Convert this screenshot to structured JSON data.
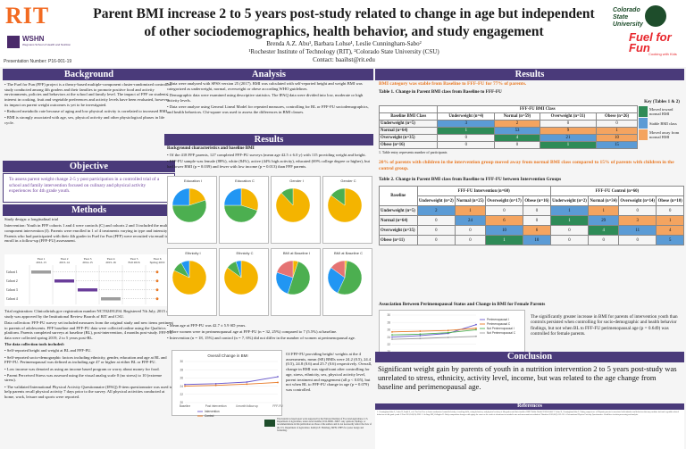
{
  "header": {
    "logo_text": "RIT",
    "wshn_name": "WSHN",
    "wshn_sub": "Wegmans School of Health and Nutrition",
    "presentation_number": "Presentation Number: P16-001-19",
    "title": "Parent BMI increase 2 to 5 years post-study related to change in age but independent of other sociodemographics, health behavior, and study engagement",
    "authors": "Brenda A.Z. Abu¹, Barbara Lohse¹, Leslie Cunningham-Sabo²",
    "affiliations": "¹Rochester Institute of Technology (RIT), ²Colorado State University (CSU)",
    "contact": "Contact: baaihst@rit.edu",
    "csu_logo": "Colorado State University",
    "fuel_logo": "Fuel for Fun",
    "fuel_sub": "Cooking with Kids"
  },
  "background": {
    "heading": "Background",
    "items": [
      "The Fuel for Fun (FFF) project is a theory-based multiple-component cluster-randomized controlled study conducted among 4th graders and their families to promote positive food and activity environments, policies and behaviors at the school and family level. The impact of FFF on students' interest in cooking, fruit and vegetable preferences and activity levels have been evaluated, however, its impact on parent weight outcomes is yet to be investigated.",
      "Reduced metabolic rate because of aging and low physical activity is correlated to increased BMI.",
      "BMI is strongly associated with age, sex, physical activity and other physiological phases in life cycle."
    ]
  },
  "objective": {
    "heading": "Objective",
    "text": "To assess parent weight change 2-5 y post participation in a controlled trial of a school and family intervention focused on culinary and physical activity experiences for 4th grade youth."
  },
  "methods": {
    "heading": "Methods",
    "design": "Study design: a longitudinal trial",
    "intervention": "Intervention: Youth in FFF cohorts 1 and 4 were controls (C) and cohorts 2 and 3 included the multi-component intervention (I). Parents were enrolled in 1 of 4 treatments varying in type and intensity. Parents who had participated with their 4th grader in Fuel for Fun (FFF) were recruited via email to enroll in a follow-up (FFF-FU) assessment.",
    "timeline_labels": [
      "Year 1 2012-13",
      "Year 2 2013-14",
      "Year 3 2014-15",
      "Year 4 2015-16",
      "Year 5 Fall 2016",
      "Year 6 Spring 2019"
    ],
    "cohort_labels": [
      "Cohort 1",
      "Cohort 2",
      "Cohort 3",
      "Cohort 4"
    ],
    "trial_reg": "Trial registration: Clinicaltrials.gov registration number NCT02491294. Registered 7th July, 2015 and study was approved by the Institutional Review Boards of RIT and CSU.",
    "data_collection": "Data collection: FFF-FU survey set included measures from the original study and new items pertinent to parents of adolescents. FFF baseline and FFF-FU data were collected online using the Qualtrics platform. Parents completed surveys at baseline (BL), post-intervention, 4 months post-study. FFF-FU data were collected spring 2019, 2 to 5 years post-BL.",
    "tools_heading": "The data collection tools included:",
    "tools": [
      "Self-reported height and weight at BL and FFF-FU.",
      "Self-reported socio-demographic factors including ethnicity, gender, education and age at BL and FFF-FU. Perimenopausal was defined as including age 47 or higher at either BL or FFF-FU.",
      "Low income was denoted as using an income based program or worry about money for food.",
      "Parent Perceived Stress was assessed using the visual analog scale 0 (no stress) to 10 (extreme stress).",
      "The validated International Physical Activity Questionnaire (IPAQ) 8-item questionnaire was used to help parents recall physical activity 7 days prior to the survey. All physical activities conducted at home, work, leisure and sports were reported."
    ]
  },
  "analysis": {
    "heading": "Analysis",
    "items": [
      "Data were analyzed with SPSS version 25 (2017). BMI was calculated with self-reported height and weight BMI was categorized as underweight, normal, overweight or obese according WHO guidelines.",
      "Demographic data were examined using descriptive statistics. The IPAQ data were divided into low, moderate or high activity levels.",
      "Data were analyze using General Lineal Model for repeated measures, controlling for BL or FFF-FU sociodemographics, and health behaviors. Chi-square was used to assess the differences in BMI classes."
    ]
  },
  "results_mid": {
    "heading": "Results",
    "subheading": "Background characteristics and baseline BMI",
    "items": [
      "Of the 418 FFF parents, 127 completed FFF-FU surveys (mean age 42.5 ± 6.0 y) with 115 providing weight and height.",
      "FFF-FU sample was female (88%), white (84%), active (44% high activity), educated (69% college degree or higher), but had lower BMI (p = 0.039) and fewer with low income (p = 0.013) than FFF parents."
    ],
    "pie_titles": [
      "Education I",
      "Education C",
      "Gender I",
      "Gender C",
      "Ethnicity I",
      "Ethnicity C",
      "BMI at Baseline I",
      "BMI at Baseline C"
    ],
    "bullets2": [
      "Mean age at FFF-FU was 42.7 ± 5.9 SD years.",
      "More women were in perimenopausal age at FFF-FU (n = 32, 25%) compared to 7 (5.5%) at baseline.",
      "Intervention (n = 18, 15%) and control (n = 7, 6%) did not differ in the number of women at perimenopausal age."
    ],
    "line_title": "Overall Change in BMI",
    "line_caption": "Of FFF-FU providing height/ weights at the 4 assessments, mean (SE) BMIs were 24.2 (0.5), 24.4 (0.5), 24.8 (0.6) and 25.7 (0.6) respectively. Overall, change in BMI was significant after controlling for age, stress, ethnicity, sex, physical activity level, parent treatment and engagement (all p < 0.05), but not when BL to FFF-FU change in age (p = 0.079) was controlled.",
    "ack": "The material is based upon work supported by the National Institute of Food and Agriculture, U.S. Department of Agriculture, under award number 2012-68001-19607. Any opinions, findings, or recommendations in this publication are those of the authors and do not necessarily reflect the view of the U.S. Department of Agriculture. Kathryn E. Hamburg, MPH, CHES for poster design and formatting."
  },
  "results_right": {
    "heading": "Results",
    "finding1": "BMI category was stable from Baseline to FFF-FU for 77% of parents.",
    "table1_title": "Table 1. Change in Parent BMI class from Baseline to FFF-FU",
    "table1_group": "FFF-FU BMI Class",
    "table1_cols": [
      "Baseline BMI Class",
      "Underweight (n=4)",
      "Normal (n=59)",
      "Overweight (n=31)",
      "Obese (n=26)"
    ],
    "table1_rows": [
      {
        "label": "Underweight (n=5)",
        "cells": [
          "3",
          "2",
          "0",
          "0"
        ],
        "colors": [
          "b",
          "o",
          "w",
          "w"
        ]
      },
      {
        "label": "Normal (n=64)",
        "cells": [
          "1",
          "53",
          "9",
          "1"
        ],
        "colors": [
          "g",
          "b",
          "o",
          "o"
        ]
      },
      {
        "label": "Overweight (n=35)",
        "cells": [
          "0",
          "4",
          "21",
          "10"
        ],
        "colors": [
          "w",
          "g",
          "b",
          "o"
        ]
      },
      {
        "label": "Obese (n=16)",
        "cells": [
          "0",
          "0",
          "1",
          "15"
        ],
        "colors": [
          "w",
          "w",
          "g",
          "b"
        ]
      }
    ],
    "table1_note": "1. Table entry represents number of participants",
    "key_title": "Key (Tables 1 & 2)",
    "key_items": [
      "Moved toward normal BMI",
      "Stable BMI class",
      "Moved away from normal BMI"
    ],
    "finding2": "20% of parents with children in the intervention group moved away from normal BMI class compared to 15% of parents with children in the control group.",
    "table2_title": "Table 2. Change in Parent BMI class from Baseline to FFF-FU between Intervention Groups",
    "table2_group_i": "FFF-FU Intervention (n=60)",
    "table2_group_c": "FFF-FU Control (n=60)",
    "table2_rowhead": "Baseline",
    "table2_cols": [
      "Underweight (n=2)",
      "Normal (n=25)",
      "Overweight (n=17)",
      "Obese (n=16)",
      "Underweight (n=2)",
      "Normal (n=34)",
      "Overweight (n=14)",
      "Obese (n=10)"
    ],
    "table2_rows": [
      {
        "label": "Underweight (n=5)",
        "cells": [
          "2",
          "1",
          "0",
          "0",
          "1",
          "1",
          "0",
          "0"
        ],
        "colors": [
          "b",
          "o",
          "w",
          "w",
          "b",
          "o",
          "w",
          "w"
        ]
      },
      {
        "label": "Normal (n=64)",
        "cells": [
          "0",
          "24",
          "6",
          "0",
          "1",
          "29",
          "3",
          "1"
        ],
        "colors": [
          "w",
          "b",
          "o",
          "w",
          "g",
          "b",
          "o",
          "o"
        ]
      },
      {
        "label": "Overweight (n=35)",
        "cells": [
          "0",
          "0",
          "10",
          "6",
          "0",
          "4",
          "11",
          "4"
        ],
        "colors": [
          "w",
          "w",
          "b",
          "o",
          "w",
          "g",
          "b",
          "o"
        ]
      },
      {
        "label": "Obese (n=11)",
        "cells": [
          "0",
          "0",
          "1",
          "10",
          "0",
          "0",
          "0",
          "5"
        ],
        "colors": [
          "w",
          "w",
          "g",
          "b",
          "w",
          "w",
          "w",
          "b"
        ]
      }
    ],
    "assoc_title": "Association Between Perimenopausal Status and Change in BMI for Female Parents",
    "assoc_legend": [
      "Perimenopausal I",
      "Perimenopausal C",
      "Not Perimenopausal I",
      "Not Perimenopausal C"
    ],
    "assoc_text": "The significantly greater increase in BMI for parents of intervention youth than controls persisted when controlling for socio-demographic and health behavior findings, but not when BL to FFF-FU perimenopausal age (p = 0.649) was controlled for female parents."
  },
  "conclusion": {
    "heading": "Conclusion",
    "text": "Significant weight gain by parents of youth in a nutrition intervention 2 to 5 years post-study was unrelated to stress, ethnicity, activity level, income, but was related to the age change from baseline and perimenopausal age."
  },
  "references": {
    "heading": "References",
    "text": "1. Cunningham-Sabo L, Lohse B, Smith S, et al. Fuel for Fun: a cluster-randomized controlled study of cooking skills, eating behaviors, and physical activity of 4th graders and their families. BMC Public Health 2016;16:444. 2. Lohse B, Cunningham-Sabo L. Eating competence of Hispanic parents is associated with attitudes and behaviors that may mediate fruit and vegetable-related behaviors of 4th grade youth. J Nutr 2012;142(10):1903. 3. St-Onge MP, Gallagher D. Body composition changes with aging: the cause or the result of alterations in metabolic rate and macronutrient oxidation? Nutrition 2010;26(2):152-155. 4. International Physical Activity Questionnaire. Guidelines for data processing and analysis."
  },
  "colors": {
    "header_bar": "#4a3a7a",
    "moved_toward": "#2e8b57",
    "stable": "#5b9bd5",
    "moved_away": "#f4a460",
    "rit": "#f26a21"
  },
  "chart_data": [
    {
      "type": "line",
      "title": "Overall Change in BMI",
      "categories": [
        "Baseline",
        "Post intervention",
        "4 month follow up",
        "FFF-FU"
      ],
      "series": [
        {
          "name": "Intervention",
          "values": [
            24.4,
            24.6,
            25.0,
            26.3
          ]
        },
        {
          "name": "Control",
          "values": [
            24.0,
            24.2,
            24.5,
            24.9
          ]
        }
      ],
      "ylim": [
        20,
        30
      ]
    },
    {
      "type": "line",
      "title": "Association Between Perimenopausal Status and Change in BMI for Female Parents",
      "categories": [
        "Baseline",
        "Post intervention",
        "4 month follow up",
        "FFF-FU"
      ],
      "xlabel": "FFF Study",
      "series": [
        {
          "name": "Perimenopausal I",
          "values": [
            24.0,
            24.4,
            25.0,
            27.4
          ]
        },
        {
          "name": "Perimenopausal C",
          "values": [
            25.4,
            25.6,
            25.8,
            26.4
          ]
        },
        {
          "name": "Not Perimenopausal I",
          "values": [
            24.6,
            24.8,
            25.2,
            26.0
          ]
        },
        {
          "name": "Not Perimenopausal C",
          "values": [
            23.4,
            23.6,
            23.9,
            24.2
          ]
        }
      ],
      "ylim": [
        20,
        30
      ]
    }
  ]
}
